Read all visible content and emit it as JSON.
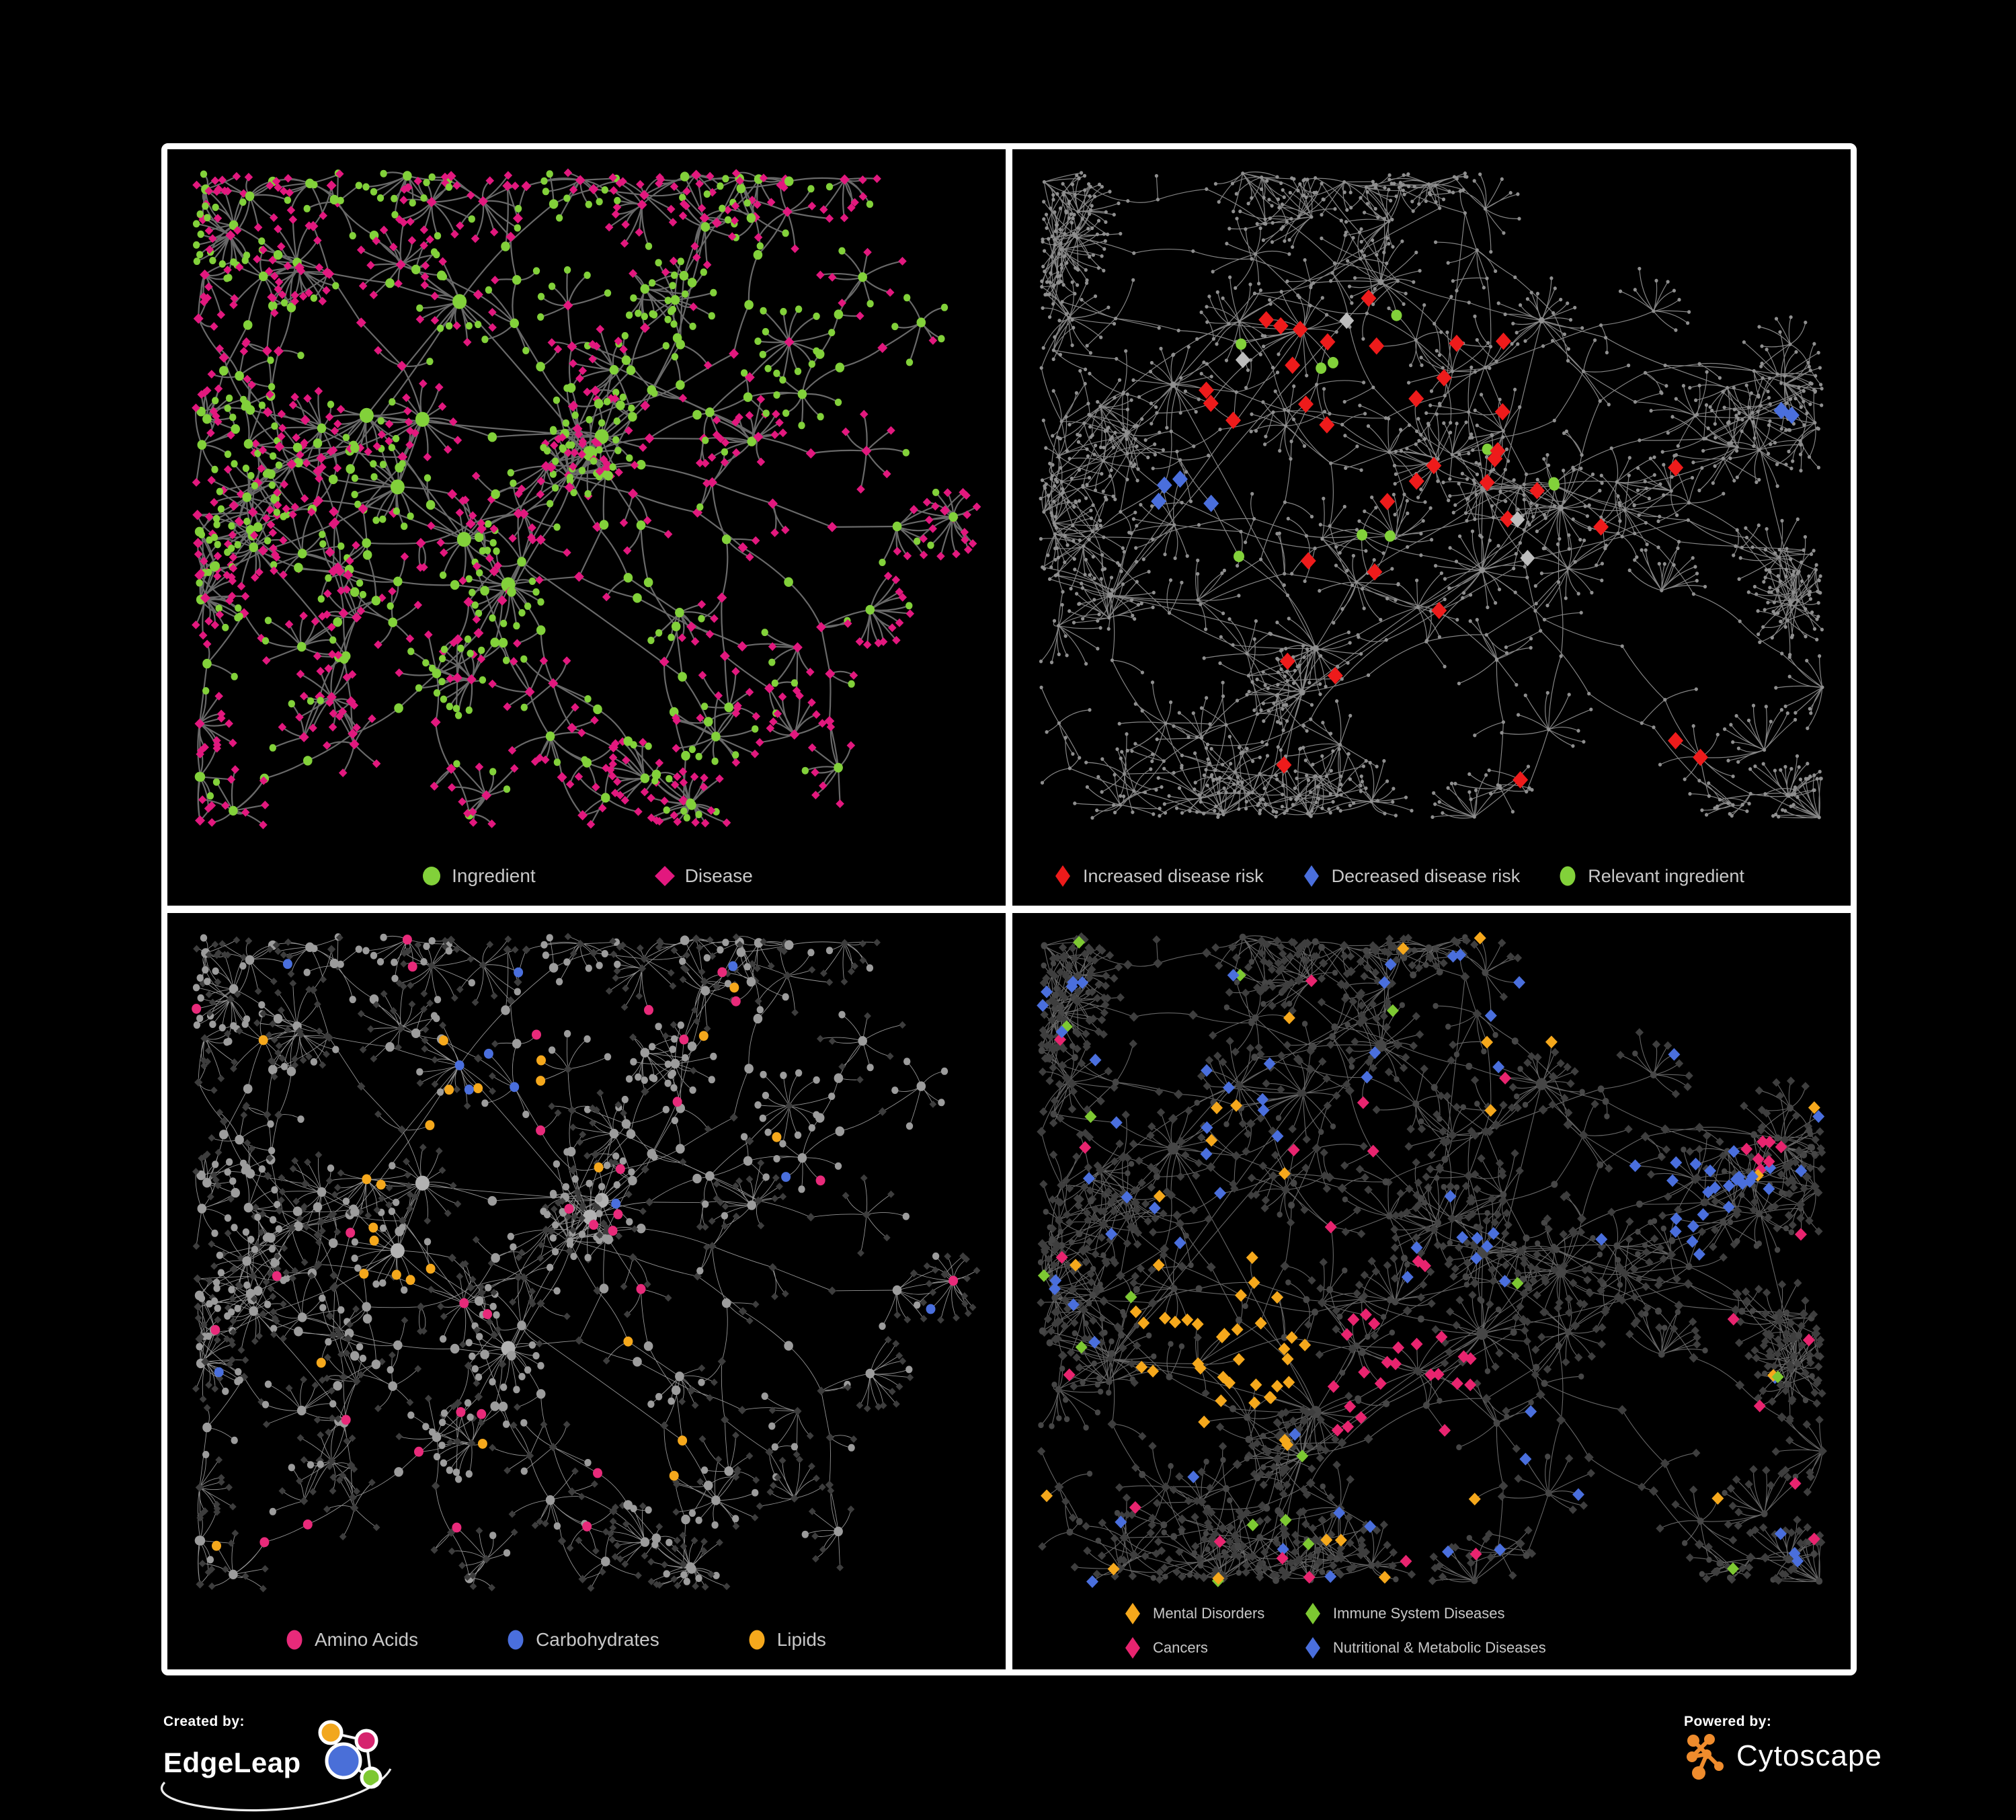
{
  "page": {
    "background": "#000000",
    "frame_border": "#ffffff"
  },
  "panels": [
    {
      "id": "ingredient-disease-network",
      "seed": 7,
      "layout": "a",
      "style": "p1",
      "edge": {
        "color": "#6f6f6f",
        "width": 2.2
      },
      "colors": {
        "ingredient": "#82d13a",
        "disease": "#e2187e"
      },
      "legend": {
        "rows": 1,
        "items": [
          {
            "label": "Ingredient",
            "shape": "circle",
            "color": "#82d13a"
          },
          {
            "label": "Disease",
            "shape": "diamond",
            "color": "#e2187e"
          }
        ]
      }
    },
    {
      "id": "disease-risk-network",
      "seed": 23,
      "layout": "b",
      "style": "p2",
      "edge": {
        "color": "#8c8c8c",
        "width": 1.2
      },
      "colors": {
        "base": "#8f8f8f",
        "increased": "#ee1b1b",
        "decreased": "#4a6fdd",
        "neutral": "#bdbdbd",
        "relevant": "#82d13a"
      },
      "legend": {
        "rows": 1,
        "items": [
          {
            "label": "Increased disease risk",
            "shape": "diamond-narrow",
            "color": "#ee1b1b"
          },
          {
            "label": "Decreased disease risk",
            "shape": "diamond-narrow",
            "color": "#4a6fdd"
          },
          {
            "label": "Relevant ingredient",
            "shape": "ellipse",
            "color": "#82d13a"
          }
        ]
      }
    },
    {
      "id": "nutrient-class-network",
      "seed": 7,
      "layout": "a",
      "style": "p3",
      "edge": {
        "color": "#9d9d9d",
        "width": 0.9
      },
      "colors": {
        "amino": "#e82a7a",
        "carbs": "#4a6fdd",
        "lipids": "#f5a81c",
        "ingredient": "#9c9c9c",
        "hub": "#b2b2b2",
        "disease": "#3d3d3d"
      },
      "legend": {
        "rows": 1,
        "items": [
          {
            "label": "Amino Acids",
            "shape": "ellipse",
            "color": "#e82a7a"
          },
          {
            "label": "Carbohydrates",
            "shape": "ellipse",
            "color": "#4a6fdd"
          },
          {
            "label": "Lipids",
            "shape": "ellipse",
            "color": "#f5a81c"
          }
        ]
      }
    },
    {
      "id": "disease-class-network",
      "seed": 23,
      "layout": "b",
      "style": "p4",
      "edge": {
        "color": "#6c6c6c",
        "width": 1.1
      },
      "colors": {
        "mental": "#f5a81c",
        "immune": "#7dc832",
        "cancers": "#e8246f",
        "nutritional": "#4a6fdd",
        "other": "#3e3e3e",
        "hub": "#464646"
      },
      "legend": {
        "rows": 2,
        "items": [
          {
            "label": "Mental Disorders",
            "shape": "diamond-narrow",
            "color": "#f5a81c"
          },
          {
            "label": "Immune System Diseases",
            "shape": "diamond-narrow",
            "color": "#7dc832"
          },
          {
            "label": "Cancers",
            "shape": "diamond-narrow",
            "color": "#e8246f"
          },
          {
            "label": "Nutritional & Metabolic Diseases",
            "shape": "diamond-narrow",
            "color": "#4a6fdd"
          }
        ]
      }
    }
  ],
  "footer": {
    "created_by": "Created by:",
    "edgeleap": "EdgeLeap",
    "powered_by": "Powered by:",
    "cytoscape": "Cytoscape",
    "edgeleap_colors": {
      "blue": "#4a6fd8",
      "orange": "#f2a71e",
      "magenta": "#d6246e",
      "green": "#7dc832"
    },
    "cytoscape_color": "#ef8c2d"
  }
}
